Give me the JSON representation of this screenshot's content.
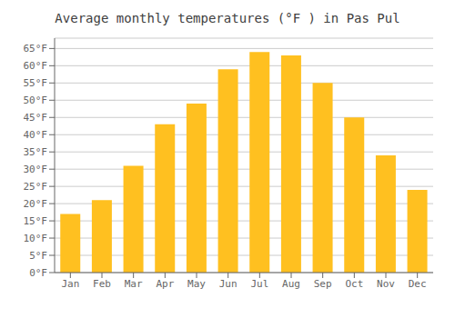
{
  "chart_data": {
    "type": "bar",
    "title": "Average monthly temperatures (°F ) in Pas Pul",
    "categories": [
      "Jan",
      "Feb",
      "Mar",
      "Apr",
      "May",
      "Jun",
      "Jul",
      "Aug",
      "Sep",
      "Oct",
      "Nov",
      "Dec"
    ],
    "values": [
      17,
      21,
      31,
      43,
      49,
      59,
      64,
      63,
      55,
      45,
      34,
      24
    ],
    "color": "#FFC020",
    "ylim": [
      0,
      68
    ],
    "yticks": [
      {
        "value": 0,
        "label": "0°F"
      },
      {
        "value": 5,
        "label": "5°F"
      },
      {
        "value": 10,
        "label": "10°F"
      },
      {
        "value": 15,
        "label": "15°F"
      },
      {
        "value": 20,
        "label": "20°F"
      },
      {
        "value": 25,
        "label": "25°F"
      },
      {
        "value": 30,
        "label": "30°F"
      },
      {
        "value": 35,
        "label": "35°F"
      },
      {
        "value": 40,
        "label": "40°F"
      },
      {
        "value": 45,
        "label": "45°F"
      },
      {
        "value": 50,
        "label": "50°F"
      },
      {
        "value": 55,
        "label": "55°F"
      },
      {
        "value": 60,
        "label": "60°F"
      },
      {
        "value": 65,
        "label": "65°F"
      }
    ],
    "grid": true
  }
}
